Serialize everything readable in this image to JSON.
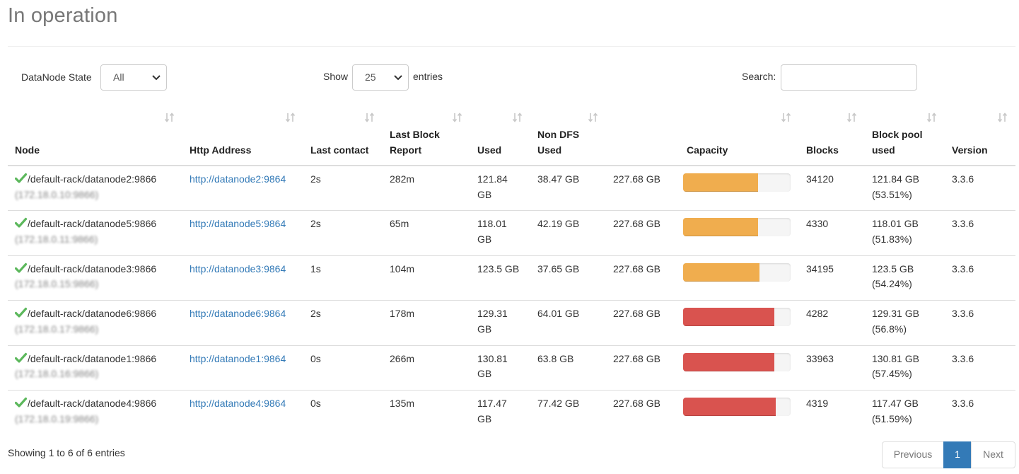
{
  "page_title": "In operation",
  "filters": {
    "state_label": "DataNode State",
    "state_value": "All",
    "show_label": "Show",
    "page_length": "25",
    "entries_label": "entries",
    "search_label": "Search:",
    "search_value": ""
  },
  "columns": [
    {
      "label": "Node"
    },
    {
      "label": "Http Address"
    },
    {
      "label": "Last contact"
    },
    {
      "label": "Last Block Report"
    },
    {
      "label": "Used"
    },
    {
      "label": "Non DFS Used"
    },
    {
      "label": "Capacity"
    },
    {
      "label": "Blocks"
    },
    {
      "label": "Block pool used"
    },
    {
      "label": "Version"
    }
  ],
  "rows": [
    {
      "node": "/default-rack/datanode2:9866",
      "addr": "(172.18.0.10:9866)",
      "http": "http://datanode2:9864",
      "last_contact": "2s",
      "block_report": "282m",
      "used": "121.84 GB",
      "non_dfs": "38.47 GB",
      "capacity": "227.68 GB",
      "usage_pct": 70,
      "bar_color": "#f0ad4e",
      "blocks": "34120",
      "bp_used": "121.84 GB",
      "bp_pct": "(53.51%)",
      "version": "3.3.6"
    },
    {
      "node": "/default-rack/datanode5:9866",
      "addr": "(172.18.0.11:9866)",
      "http": "http://datanode5:9864",
      "last_contact": "2s",
      "block_report": "65m",
      "used": "118.01 GB",
      "non_dfs": "42.19 GB",
      "capacity": "227.68 GB",
      "usage_pct": 70,
      "bar_color": "#f0ad4e",
      "blocks": "4330",
      "bp_used": "118.01 GB",
      "bp_pct": "(51.83%)",
      "version": "3.3.6"
    },
    {
      "node": "/default-rack/datanode3:9866",
      "addr": "(172.18.0.15:9866)",
      "http": "http://datanode3:9864",
      "last_contact": "1s",
      "block_report": "104m",
      "used": "123.5 GB",
      "non_dfs": "37.65 GB",
      "capacity": "227.68 GB",
      "usage_pct": 71,
      "bar_color": "#f0ad4e",
      "blocks": "34195",
      "bp_used": "123.5 GB",
      "bp_pct": "(54.24%)",
      "version": "3.3.6"
    },
    {
      "node": "/default-rack/datanode6:9866",
      "addr": "(172.18.0.17:9866)",
      "http": "http://datanode6:9864",
      "last_contact": "2s",
      "block_report": "178m",
      "used": "129.31 GB",
      "non_dfs": "64.01 GB",
      "capacity": "227.68 GB",
      "usage_pct": 85,
      "bar_color": "#d9534f",
      "blocks": "4282",
      "bp_used": "129.31 GB",
      "bp_pct": "(56.8%)",
      "version": "3.3.6"
    },
    {
      "node": "/default-rack/datanode1:9866",
      "addr": "(172.18.0.16:9866)",
      "http": "http://datanode1:9864",
      "last_contact": "0s",
      "block_report": "266m",
      "used": "130.81 GB",
      "non_dfs": "63.8 GB",
      "capacity": "227.68 GB",
      "usage_pct": 85,
      "bar_color": "#d9534f",
      "blocks": "33963",
      "bp_used": "130.81 GB",
      "bp_pct": "(57.45%)",
      "version": "3.3.6"
    },
    {
      "node": "/default-rack/datanode4:9866",
      "addr": "(172.18.0.19:9866)",
      "http": "http://datanode4:9864",
      "last_contact": "0s",
      "block_report": "135m",
      "used": "117.47 GB",
      "non_dfs": "77.42 GB",
      "capacity": "227.68 GB",
      "usage_pct": 86,
      "bar_color": "#d9534f",
      "blocks": "4319",
      "bp_used": "117.47 GB",
      "bp_pct": "(51.59%)",
      "version": "3.3.6"
    }
  ],
  "footer": {
    "info": "Showing 1 to 6 of 6 entries",
    "prev": "Previous",
    "current_page": "1",
    "next": "Next"
  },
  "colors": {
    "check": "#5cb85c",
    "link": "#337ab7",
    "warning_bar": "#f0ad4e",
    "danger_bar": "#d9534f",
    "active_page": "#337ab7"
  },
  "icons": {
    "status": "check-icon",
    "sort": "sort-icon",
    "dropdown": "chevron-down-icon"
  }
}
